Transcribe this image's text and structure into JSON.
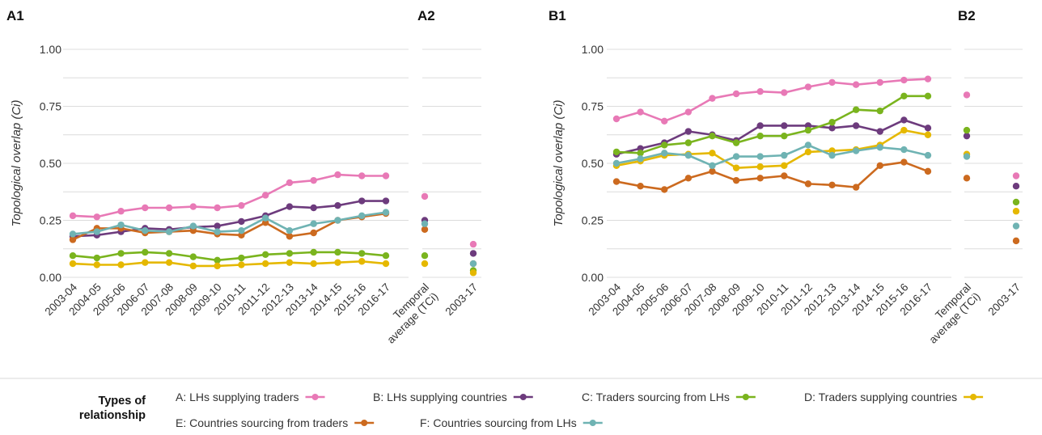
{
  "chart_data": [
    {
      "panel": "A1",
      "type": "line",
      "ylabel": "Topological overlap (Ci)",
      "ylim": [
        0,
        1
      ],
      "yticks": [
        "0.00",
        "0.25",
        "0.50",
        "0.75",
        "1.00"
      ],
      "categories": [
        "2003-04",
        "2004-05",
        "2005-06",
        "2006-07",
        "2007-08",
        "2008-09",
        "2009-10",
        "2010-11",
        "2011-12",
        "2012-13",
        "2013-14",
        "2014-15",
        "2015-16",
        "2016-17"
      ],
      "series": [
        {
          "name": "A: LHs supplying traders",
          "color": "#e879b6",
          "values": [
            0.27,
            0.265,
            0.29,
            0.305,
            0.305,
            0.31,
            0.305,
            0.315,
            0.36,
            0.415,
            0.425,
            0.45,
            0.445,
            0.445
          ]
        },
        {
          "name": "B: LHs supplying countries",
          "color": "#6d3b7d",
          "values": [
            0.18,
            0.185,
            0.2,
            0.215,
            0.21,
            0.22,
            0.225,
            0.245,
            0.27,
            0.31,
            0.305,
            0.315,
            0.335,
            0.335
          ]
        },
        {
          "name": "C: Traders sourcing from LHs",
          "color": "#7ab41e",
          "values": [
            0.095,
            0.085,
            0.105,
            0.11,
            0.105,
            0.09,
            0.075,
            0.085,
            0.1,
            0.105,
            0.11,
            0.11,
            0.105,
            0.095
          ]
        },
        {
          "name": "D: Traders supplying countries",
          "color": "#e5b800",
          "values": [
            0.06,
            0.055,
            0.055,
            0.065,
            0.065,
            0.05,
            0.05,
            0.055,
            0.06,
            0.065,
            0.06,
            0.065,
            0.07,
            0.06
          ]
        },
        {
          "name": "E: Countries sourcing from traders",
          "color": "#cc6a1f",
          "values": [
            0.165,
            0.215,
            0.215,
            0.195,
            0.2,
            0.205,
            0.19,
            0.185,
            0.24,
            0.18,
            0.195,
            0.25,
            0.265,
            0.28
          ]
        },
        {
          "name": "F: Countries sourcing from LHs",
          "color": "#6fb3b3",
          "values": [
            0.19,
            0.2,
            0.23,
            0.205,
            0.2,
            0.225,
            0.2,
            0.205,
            0.26,
            0.205,
            0.235,
            0.25,
            0.27,
            0.285
          ]
        }
      ]
    },
    {
      "panel": "A2",
      "type": "scatter",
      "categories": [
        "Temporal average (TCi)",
        "2003-17"
      ],
      "series": [
        {
          "name": "A: LHs supplying traders",
          "color": "#e879b6",
          "values": [
            0.355,
            0.145
          ]
        },
        {
          "name": "B: LHs supplying countries",
          "color": "#6d3b7d",
          "values": [
            0.25,
            0.105
          ]
        },
        {
          "name": "C: Traders sourcing from LHs",
          "color": "#7ab41e",
          "values": [
            0.095,
            0.03
          ]
        },
        {
          "name": "D: Traders supplying countries",
          "color": "#e5b800",
          "values": [
            0.06,
            0.02
          ]
        },
        {
          "name": "E: Countries sourcing from traders",
          "color": "#cc6a1f",
          "values": [
            0.21,
            0.06
          ]
        },
        {
          "name": "F: Countries sourcing from LHs",
          "color": "#6fb3b3",
          "values": [
            0.235,
            0.06
          ]
        }
      ]
    },
    {
      "panel": "B1",
      "type": "line",
      "ylabel": "Topological overlap (Ci)",
      "ylim": [
        0,
        1
      ],
      "yticks": [
        "0.00",
        "0.25",
        "0.50",
        "0.75",
        "1.00"
      ],
      "categories": [
        "2003-04",
        "2004-05",
        "2005-06",
        "2006-07",
        "2007-08",
        "2008-09",
        "2009-10",
        "2010-11",
        "2011-12",
        "2012-13",
        "2013-14",
        "2014-15",
        "2015-16",
        "2016-17"
      ],
      "series": [
        {
          "name": "A: LHs supplying traders",
          "color": "#e879b6",
          "values": [
            0.695,
            0.725,
            0.685,
            0.725,
            0.785,
            0.805,
            0.815,
            0.81,
            0.835,
            0.855,
            0.845,
            0.855,
            0.865,
            0.87
          ]
        },
        {
          "name": "B: LHs supplying countries",
          "color": "#6d3b7d",
          "values": [
            0.54,
            0.565,
            0.59,
            0.64,
            0.625,
            0.6,
            0.665,
            0.665,
            0.665,
            0.655,
            0.665,
            0.64,
            0.69,
            0.655
          ]
        },
        {
          "name": "C: Traders sourcing from LHs",
          "color": "#7ab41e",
          "values": [
            0.55,
            0.545,
            0.58,
            0.59,
            0.62,
            0.59,
            0.62,
            0.62,
            0.645,
            0.68,
            0.735,
            0.73,
            0.795,
            0.795
          ]
        },
        {
          "name": "D: Traders supplying countries",
          "color": "#e5b800",
          "values": [
            0.49,
            0.51,
            0.535,
            0.54,
            0.545,
            0.48,
            0.485,
            0.49,
            0.55,
            0.555,
            0.56,
            0.58,
            0.645,
            0.625
          ]
        },
        {
          "name": "E: Countries sourcing from traders",
          "color": "#cc6a1f",
          "values": [
            0.42,
            0.4,
            0.385,
            0.435,
            0.465,
            0.425,
            0.435,
            0.445,
            0.41,
            0.405,
            0.395,
            0.49,
            0.505,
            0.465
          ]
        },
        {
          "name": "F: Countries sourcing from LHs",
          "color": "#6fb3b3",
          "values": [
            0.5,
            0.52,
            0.545,
            0.535,
            0.49,
            0.53,
            0.53,
            0.535,
            0.58,
            0.535,
            0.555,
            0.57,
            0.56,
            0.535
          ]
        }
      ]
    },
    {
      "panel": "B2",
      "type": "scatter",
      "categories": [
        "Temporal average (TCi)",
        "2003-17"
      ],
      "series": [
        {
          "name": "A: LHs supplying traders",
          "color": "#e879b6",
          "values": [
            0.8,
            0.445
          ]
        },
        {
          "name": "B: LHs supplying countries",
          "color": "#6d3b7d",
          "values": [
            0.62,
            0.4
          ]
        },
        {
          "name": "C: Traders sourcing from LHs",
          "color": "#7ab41e",
          "values": [
            0.645,
            0.33
          ]
        },
        {
          "name": "D: Traders supplying countries",
          "color": "#e5b800",
          "values": [
            0.54,
            0.29
          ]
        },
        {
          "name": "E: Countries sourcing from traders",
          "color": "#cc6a1f",
          "values": [
            0.435,
            0.16
          ]
        },
        {
          "name": "F: Countries sourcing from LHs",
          "color": "#6fb3b3",
          "values": [
            0.53,
            0.225
          ]
        }
      ]
    }
  ],
  "legend": {
    "title_line1": "Types of",
    "title_line2": "relationship",
    "placement": "bottom"
  }
}
